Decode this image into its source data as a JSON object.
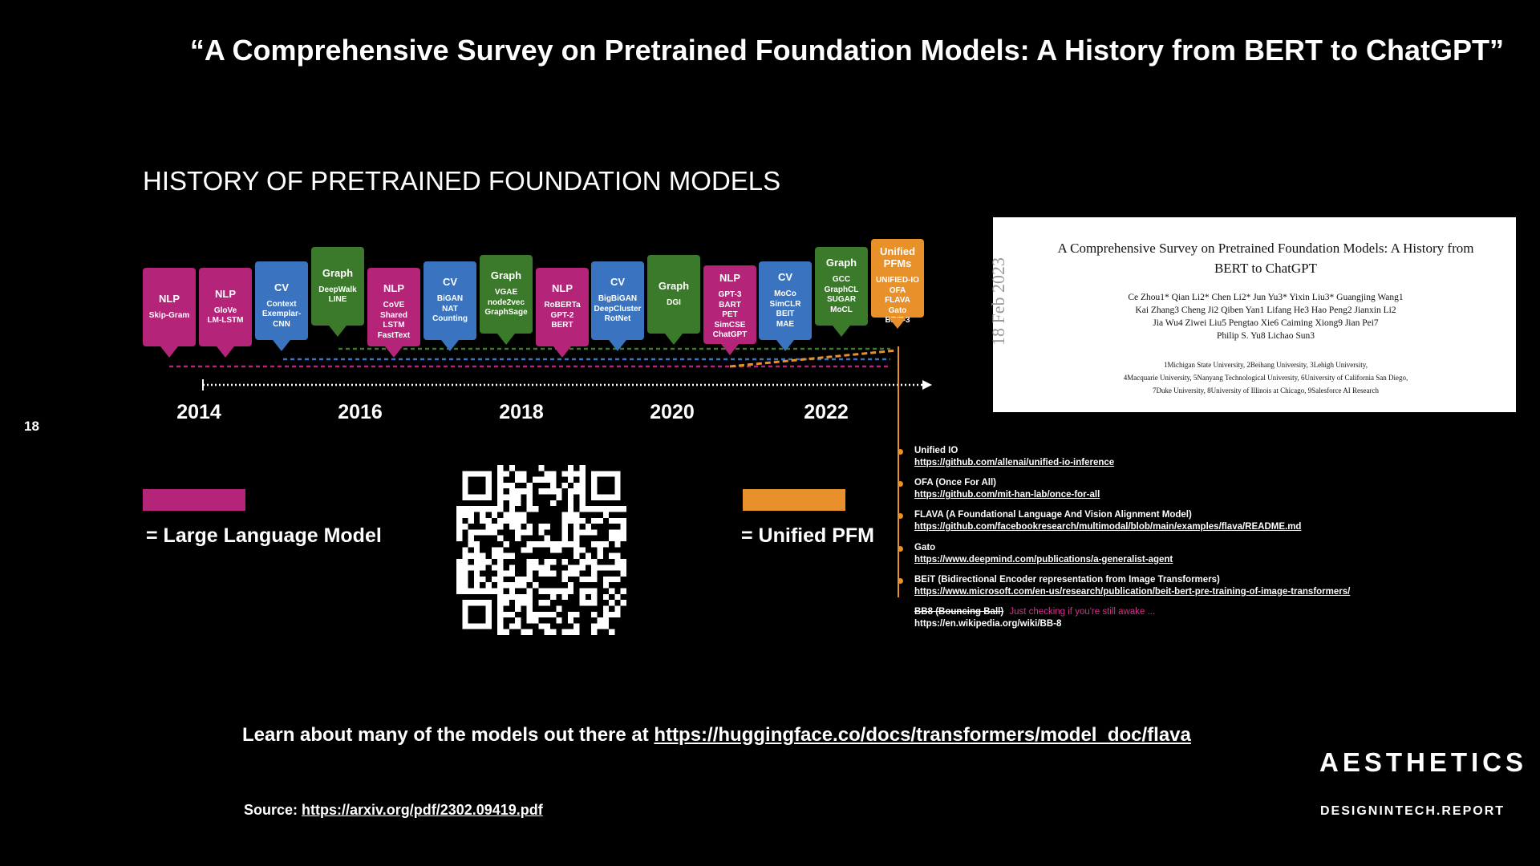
{
  "page": {
    "title": "“A Comprehensive Survey on Pretrained Foundation Models: A History from BERT to ChatGPT”",
    "page_number": "18"
  },
  "timeline": {
    "heading": "HISTORY OF PRETRAINED FOUNDATION MODELS",
    "colors": {
      "NLP": "#b4257a",
      "CV": "#3a74c0",
      "Graph": "#3b7a2b",
      "Unified": "#e8902a"
    },
    "years": [
      "2014",
      "2016",
      "2018",
      "2020",
      "2022"
    ],
    "cards": [
      {
        "category": "NLP",
        "color": "NLP",
        "models": "Skip-Gram"
      },
      {
        "category": "NLP",
        "color": "NLP",
        "models": "GloVe\nLM-LSTM"
      },
      {
        "category": "CV",
        "color": "CV",
        "models": "Context\nExemplar-CNN"
      },
      {
        "category": "Graph",
        "color": "Graph",
        "models": "DeepWalk\nLINE"
      },
      {
        "category": "NLP",
        "color": "NLP",
        "models": "CoVE\nShared LSTM\nFastText"
      },
      {
        "category": "CV",
        "color": "CV",
        "models": "BiGAN\nNAT\nCounting"
      },
      {
        "category": "Graph",
        "color": "Graph",
        "models": "VGAE\nnode2vec\nGraphSage"
      },
      {
        "category": "NLP",
        "color": "NLP",
        "models": "RoBERTa\nGPT-2\nBERT"
      },
      {
        "category": "CV",
        "color": "CV",
        "models": "BigBiGAN\nDeepCluster\nRotNet"
      },
      {
        "category": "Graph",
        "color": "Graph",
        "models": "DGI"
      },
      {
        "category": "NLP",
        "color": "NLP",
        "models": "GPT-3\nBART\nPET\nSimCSE\nChatGPT"
      },
      {
        "category": "CV",
        "color": "CV",
        "models": "MoCo\nSimCLR\nBEIT\nMAE"
      },
      {
        "category": "Graph",
        "color": "Graph",
        "models": "GCC\nGraphCL\nSUGAR\nMoCL"
      },
      {
        "category": "Unified\nPFMs",
        "color": "Unified",
        "models": "UNIFIED-IO\nOFA\nFLAVA\nGato\nBEIT-3"
      }
    ]
  },
  "legend": {
    "llm_label": "= Large Language Model",
    "llm_color": "#b4257a",
    "pfm_label": "= Unified PFM",
    "pfm_color": "#e8902a"
  },
  "paper": {
    "title": "A Comprehensive Survey on Pretrained Foundation Models: A History from BERT to ChatGPT",
    "date_stamp": "18 Feb 2023",
    "authors": [
      "Ce Zhou1* Qian Li2* Chen Li2* Jun Yu3* Yixin Liu3* Guangjing Wang1",
      "Kai Zhang3 Cheng Ji2 Qiben Yan1 Lifang He3 Hao Peng2 Jianxin Li2",
      "Jia Wu4 Ziwei Liu5 Pengtao Xie6 Caiming Xiong9 Jian Pei7",
      "Philip S. Yu8 Lichao Sun3"
    ],
    "affiliations": [
      "1Michigan State University, 2Beihang University, 3Lehigh University,",
      "4Macquarie University, 5Nanyang Technological University, 6University of California San Diego,",
      "7Duke University, 8University of Illinois at Chicago, 9Salesforce AI Research"
    ]
  },
  "references": [
    {
      "name": "Unified IO",
      "url": "https://github.com/allenai/unified-io-inference"
    },
    {
      "name": "OFA (Once For All)",
      "url": "https://github.com/mit-han-lab/once-for-all"
    },
    {
      "name": "FLAVA (A Foundational Language And Vision Alignment Model)",
      "url": "https://github.com/facebookresearch/multimodal/blob/main/examples/flava/README.md"
    },
    {
      "name": "Gato",
      "url": "https://www.deepmind.com/publications/a-generalist-agent"
    },
    {
      "name": "BEiT (Bidirectional Encoder representation from Image Transformers)",
      "url": "https://www.microsoft.com/en-us/research/publication/beit-bert-pre-training-of-image-transformers/"
    }
  ],
  "easter_egg": {
    "name": "BB8 (Bouncing Ball)",
    "note": "Just checking if you're still awake ...",
    "url": "https://en.wikipedia.org/wiki/BB-8"
  },
  "footer": {
    "learn_text": "Learn about many of the models out there at ",
    "learn_link": "https://huggingface.co/docs/transformers/model_doc/flava",
    "source_label": "Source: ",
    "source_link": "https://arxiv.org/pdf/2302.09419.pdf",
    "brand": "AESTHETICS",
    "brand_url": "DESIGNINTECH.REPORT"
  }
}
